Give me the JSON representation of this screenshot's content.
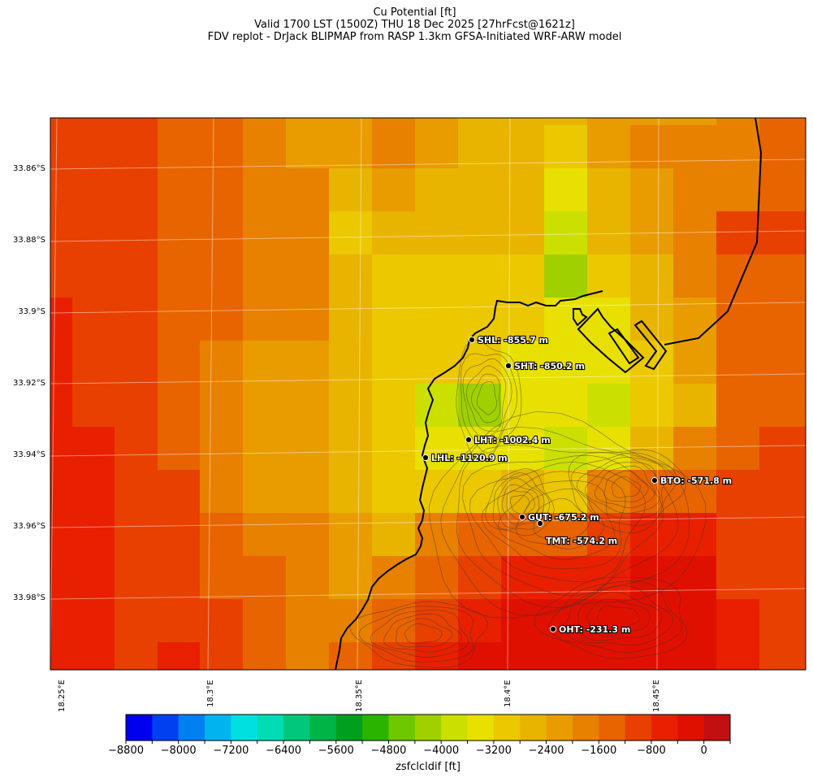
{
  "title": {
    "line1": "Cu Potential [ft]",
    "line2": "Valid 1700 LST (1500Z) THU 18 Dec 2025 [27hrFcst@1621z]",
    "line3": "FDV replot - DrJack BLIPMAP from RASP 1.3km GFSA-Initiated WRF-ARW model"
  },
  "lat_labels": [
    "33.86°S",
    "33.88°S",
    "33.9°S",
    "33.92°S",
    "33.94°S",
    "33.96°S",
    "33.98°S"
  ],
  "lon_labels": [
    "18.25°E",
    "18.3°E",
    "18.35°E",
    "18.4°E",
    "18.45°E"
  ],
  "stations": [
    {
      "label": "SHL: -855.7 m"
    },
    {
      "label": "SHT: -850.2 m"
    },
    {
      "label": "LHT: -1002.4 m"
    },
    {
      "label": "LHL: -1120.9 m"
    },
    {
      "label": "BTO: -571.8 m"
    },
    {
      "label": "GUT: -675.2 m"
    },
    {
      "label": "TMT: -574.2 m"
    },
    {
      "label": "OHT: -231.3 m"
    }
  ],
  "colorbar": {
    "title": "zsfclcldif [ft]",
    "min": -8800,
    "max": 400,
    "step": 400,
    "tick_values": [
      "−8800",
      "−8000",
      "−7200",
      "−6400",
      "−5600",
      "−4800",
      "−4000",
      "−3200",
      "−2400",
      "−1600",
      "−800",
      "0"
    ],
    "colors": [
      "#0000f0",
      "#0040f0",
      "#0080f0",
      "#00b4f0",
      "#00e0e0",
      "#00dcb4",
      "#00c87a",
      "#00b446",
      "#00a01e",
      "#2ab400",
      "#6ec800",
      "#a0d000",
      "#cce000",
      "#e8e000",
      "#ecc800",
      "#e8b400",
      "#e89c00",
      "#e88000",
      "#e86400",
      "#e84000",
      "#e82000",
      "#e01000",
      "#c01010"
    ]
  }
}
